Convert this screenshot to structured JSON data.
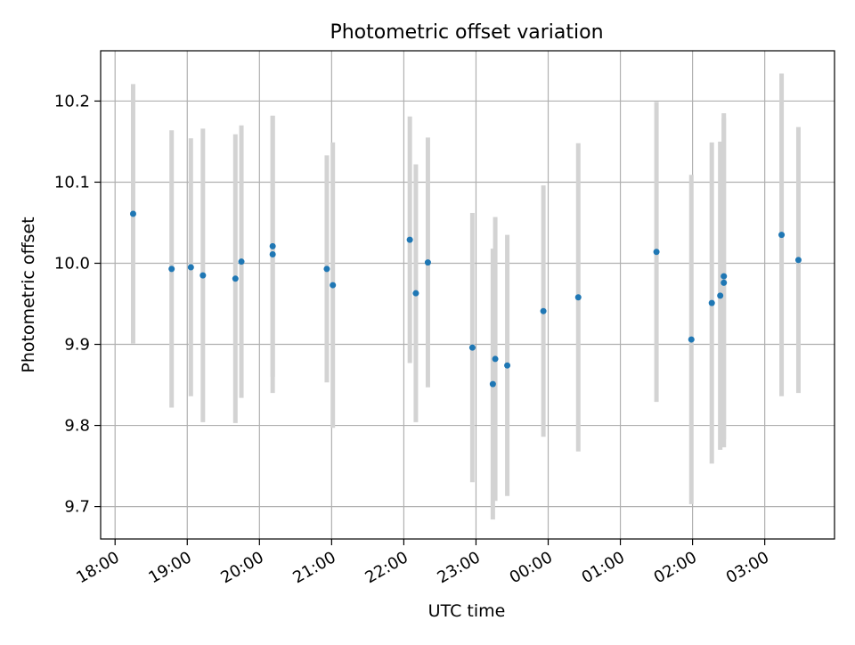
{
  "chart_data": {
    "type": "scatter",
    "title": "Photometric offset variation",
    "xlabel": "UTC time",
    "ylabel": "Photometric offset",
    "x_axis": {
      "kind": "time",
      "start": "18:00",
      "end": "04:00",
      "tick_labels": [
        "18:00",
        "19:00",
        "20:00",
        "21:00",
        "22:00",
        "23:00",
        "00:00",
        "01:00",
        "02:00",
        "03:00"
      ],
      "lim": [
        "17:48",
        "03:58"
      ]
    },
    "y_axis": {
      "ticks": [
        9.7,
        9.8,
        9.9,
        10.0,
        10.1,
        10.2
      ],
      "tick_labels": [
        "9.7",
        "9.8",
        "9.9",
        "10.0",
        "10.1",
        "10.2"
      ],
      "lim": [
        9.66,
        10.262
      ]
    },
    "grid": true,
    "marker_color": "#1f77b4",
    "errorbar_color": "#d3d3d3",
    "series": [
      {
        "points": [
          {
            "t": "18:15",
            "y": 10.061,
            "err": 0.16
          },
          {
            "t": "18:47",
            "y": 9.993,
            "err": 0.171
          },
          {
            "t": "19:03",
            "y": 9.995,
            "err": 0.159
          },
          {
            "t": "19:13",
            "y": 9.985,
            "err": 0.181
          },
          {
            "t": "19:40",
            "y": 9.981,
            "err": 0.178
          },
          {
            "t": "19:45",
            "y": 10.002,
            "err": 0.168
          },
          {
            "t": "20:11",
            "y": 10.011,
            "err": 0.171
          },
          {
            "t": "20:11",
            "y": 10.021,
            "err": 0.161
          },
          {
            "t": "20:56",
            "y": 9.993,
            "err": 0.14
          },
          {
            "t": "21:01",
            "y": 9.973,
            "err": 0.176
          },
          {
            "t": "22:05",
            "y": 10.029,
            "err": 0.152
          },
          {
            "t": "22:10",
            "y": 9.963,
            "err": 0.159
          },
          {
            "t": "22:20",
            "y": 10.001,
            "err": 0.154
          },
          {
            "t": "22:57",
            "y": 9.896,
            "err": 0.166
          },
          {
            "t": "23:14",
            "y": 9.851,
            "err": 0.167
          },
          {
            "t": "23:16",
            "y": 9.882,
            "err": 0.175
          },
          {
            "t": "23:26",
            "y": 9.874,
            "err": 0.161
          },
          {
            "t": "23:56",
            "y": 9.941,
            "err": 0.155
          },
          {
            "t": "00:25",
            "y": 9.958,
            "err": 0.19
          },
          {
            "t": "01:30",
            "y": 10.014,
            "err": 0.185
          },
          {
            "t": "01:59",
            "y": 9.906,
            "err": 0.203
          },
          {
            "t": "02:16",
            "y": 9.951,
            "err": 0.198
          },
          {
            "t": "02:23",
            "y": 9.96,
            "err": 0.19
          },
          {
            "t": "02:26",
            "y": 9.984,
            "err": 0.201
          },
          {
            "t": "02:26",
            "y": 9.976,
            "err": 0.203
          },
          {
            "t": "03:14",
            "y": 10.035,
            "err": 0.199
          },
          {
            "t": "03:28",
            "y": 10.004,
            "err": 0.164
          }
        ]
      }
    ]
  }
}
